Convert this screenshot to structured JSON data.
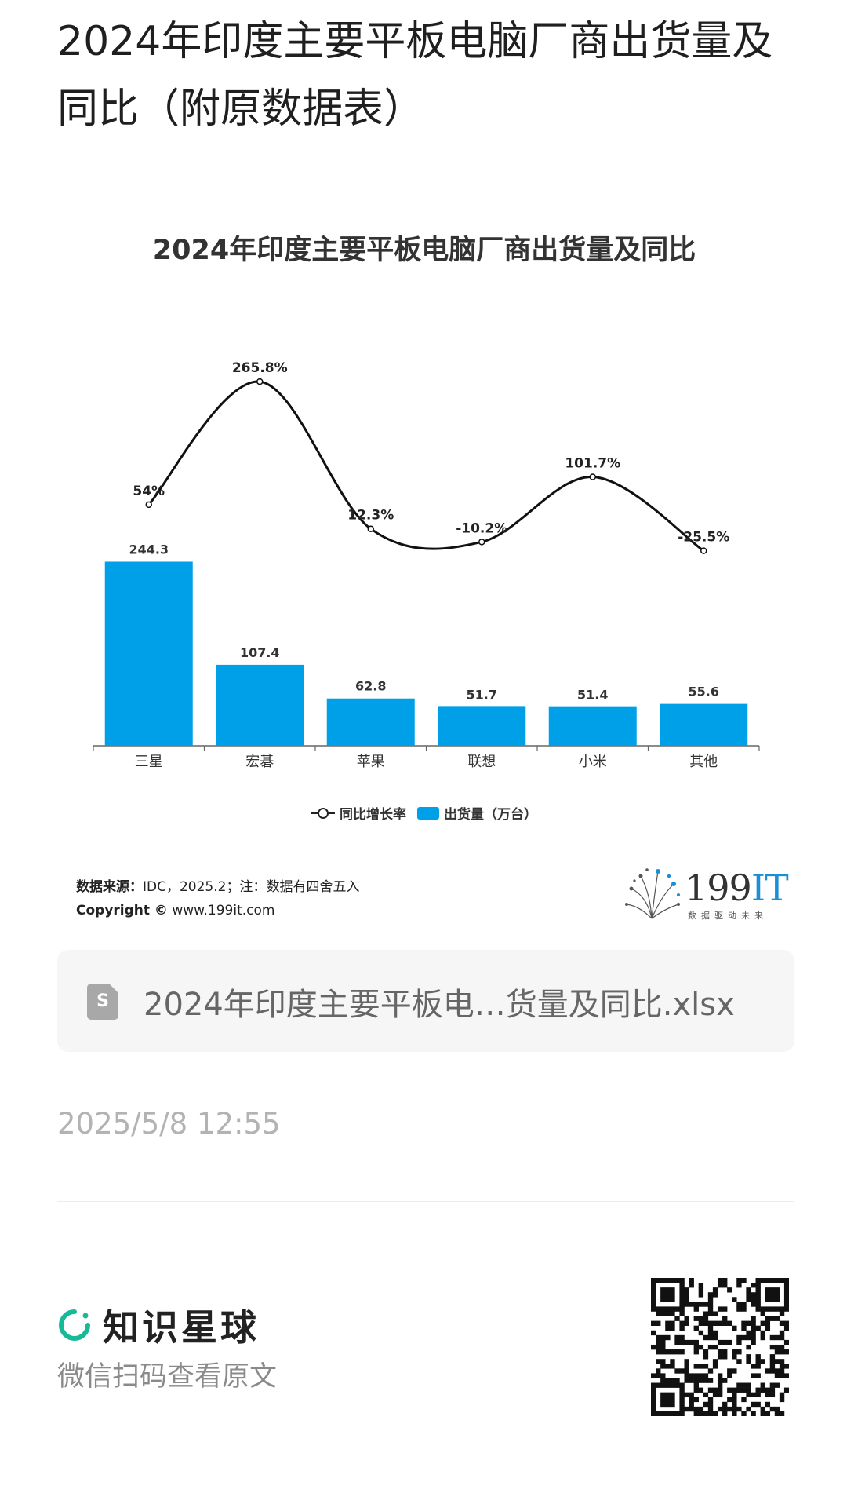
{
  "page_title": "2024年印度主要平板电脑厂商出货量及同比（附原数据表）",
  "chart_data": {
    "type": "bar",
    "title": "2024年印度主要平板电脑厂商出货量及同比",
    "categories": [
      "三星",
      "宏碁",
      "苹果",
      "联想",
      "小米",
      "其他"
    ],
    "series": [
      {
        "name": "出货量（万台）",
        "type": "bar",
        "values": [
          244.3,
          107.4,
          62.8,
          51.7,
          51.4,
          55.6
        ],
        "labels": [
          "244.3",
          "107.4",
          "62.8",
          "51.7",
          "51.4",
          "55.6"
        ]
      },
      {
        "name": "同比增长率",
        "type": "line",
        "values": [
          54,
          265.8,
          12.3,
          -10.2,
          101.7,
          -25.5
        ],
        "labels": [
          "54%",
          "265.8%",
          "12.3%",
          "-10.2%",
          "101.7%",
          "-25.5%"
        ]
      }
    ],
    "bar_color": "#00a0e9",
    "line_color": "#111111"
  },
  "legend": {
    "line_label": "同比增长率",
    "bar_label": "出货量（万台）"
  },
  "footnote": {
    "source_label": "数据来源：",
    "source_text": "IDC，2025.2；注：数据有四舍五入",
    "copyright_label": "Copyright ©",
    "copyright_text": "www.199it.com"
  },
  "brand": {
    "main": "199",
    "accent": "IT",
    "sub": "数据驱动未来"
  },
  "file": {
    "icon_letter": "S",
    "name": "2024年印度主要平板电…货量及同比.xlsx"
  },
  "timestamp": "2025/5/8 12:55",
  "footer": {
    "app_name": "知识星球",
    "hint": "微信扫码查看原文"
  }
}
